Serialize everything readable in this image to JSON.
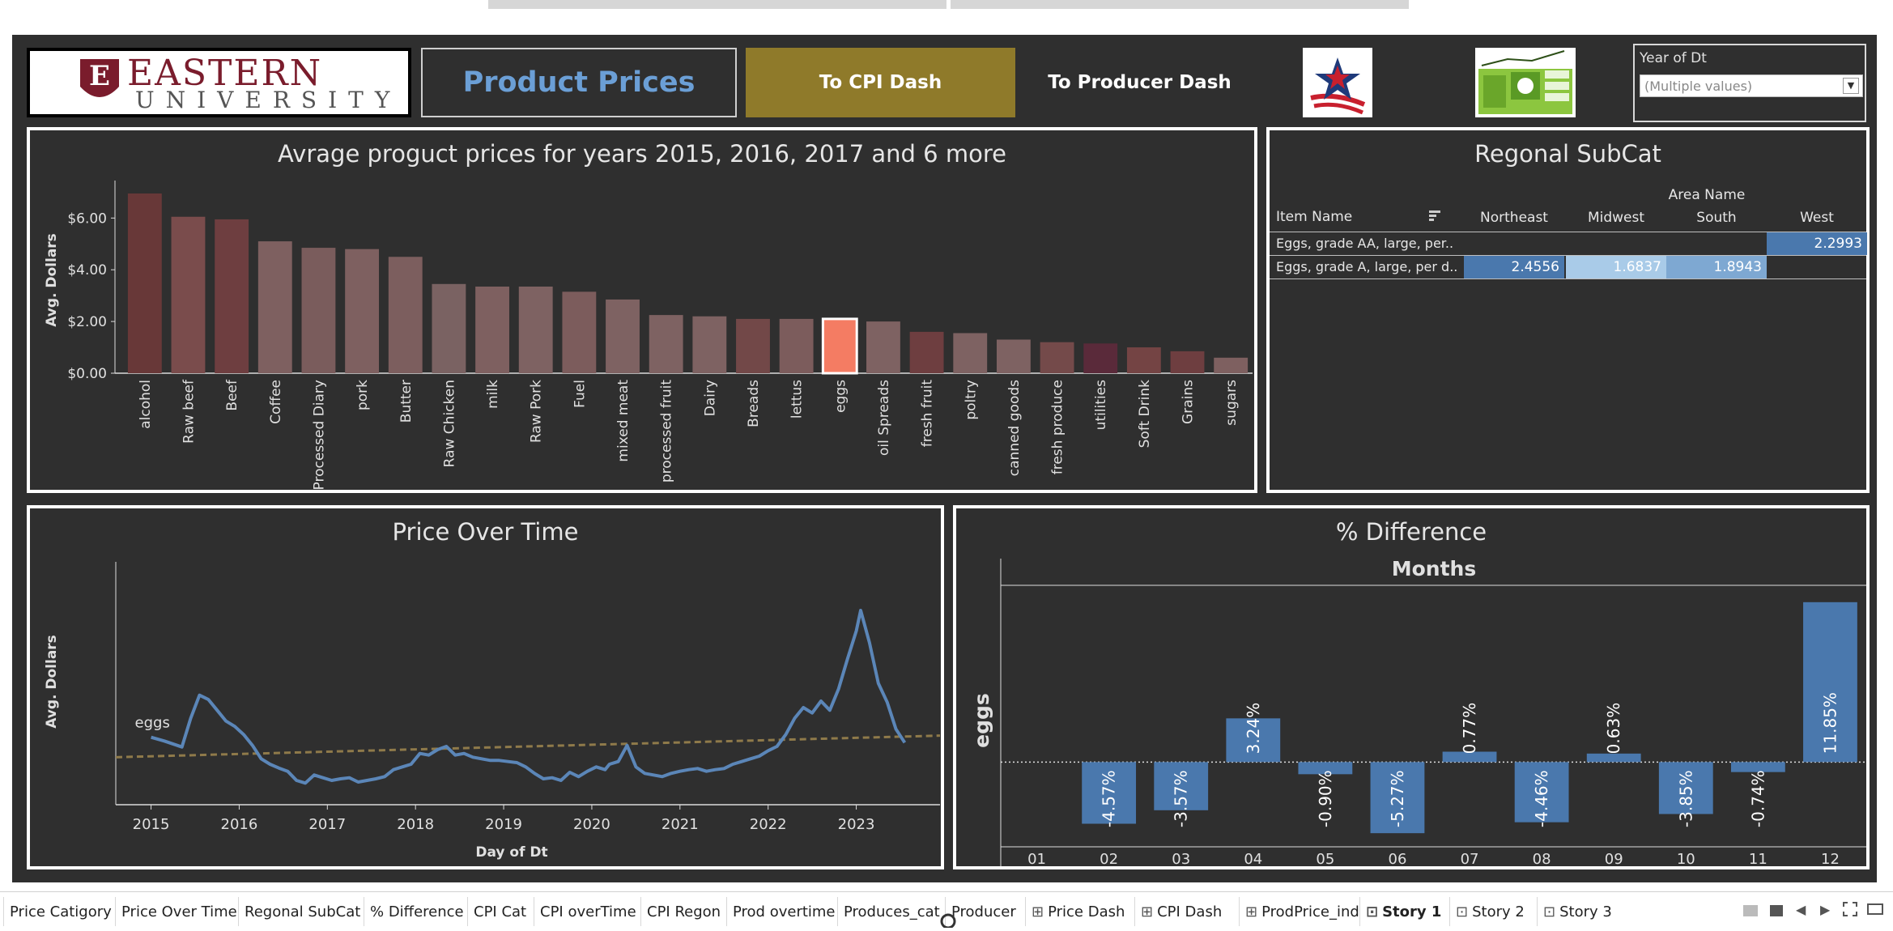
{
  "header": {
    "university_name": "EASTERN",
    "university_sub": "UNIVERSITY",
    "logo_letter": "E",
    "dashboard_title": "Product Prices",
    "cpi_button": "To CPI Dash",
    "producer_button": "To Producer Dash"
  },
  "filter": {
    "label": "Year of Dt",
    "value": "(Multiple values)"
  },
  "colors": {
    "background": "#2f2f2f",
    "accent_gold": "#8f7a2a",
    "title_blue": "#6b9fd6",
    "line_blue": "#5b86b8",
    "bar_blue": "#4a78ad",
    "highlight": "#f47c63",
    "trend_gold": "#8f7a4a"
  },
  "bar_panel": {
    "title": "Avrage proguct prices for years 2015, 2016, 2017 and 6 more"
  },
  "regional_panel": {
    "title": "Regonal SubCat",
    "group_header": "Area Name",
    "row_header": "Item Name",
    "columns": [
      "Northeast",
      "Midwest",
      "South",
      "West"
    ],
    "rows": [
      {
        "item": "Eggs, grade AA, large, per..",
        "values": [
          "",
          "",
          "",
          "2.2993"
        ]
      },
      {
        "item": "Eggs, grade A, large, per d..",
        "values": [
          "2.4556",
          "1.6837",
          "1.8943",
          ""
        ]
      }
    ]
  },
  "price_panel": {
    "title": "Price Over Time",
    "series_label": "eggs"
  },
  "diff_panel": {
    "title": "% Difference",
    "header": "Months",
    "row_label": "eggs"
  },
  "chart_data": [
    {
      "type": "bar",
      "title": "Avrage proguct prices for years 2015, 2016, 2017 and 6 more",
      "ylabel": "Avg. Dollars",
      "ylim": [
        0,
        7.2
      ],
      "yticks": [
        "$0.00",
        "$2.00",
        "$4.00",
        "$6.00"
      ],
      "ytick_values": [
        0,
        2,
        4,
        6
      ],
      "categories": [
        "alcohol",
        "Raw beef",
        "Beef",
        "Coffee",
        "Processed Diary",
        "pork",
        "Butter",
        "Raw Chicken",
        "milk",
        "Raw Pork",
        "Fuel",
        "mixed meat",
        "processed fruit",
        "Dairy",
        "Breads",
        "lettus",
        "eggs",
        "oil Spreads",
        "fresh fruit",
        "poltry",
        "canned goods",
        "fresh produce",
        "utilities",
        "Soft Drink",
        "Grains",
        "sugars"
      ],
      "values": [
        6.95,
        6.05,
        5.95,
        5.1,
        4.85,
        4.8,
        4.5,
        3.45,
        3.35,
        3.35,
        3.15,
        2.85,
        2.25,
        2.2,
        2.1,
        2.1,
        2.1,
        2.0,
        1.6,
        1.55,
        1.3,
        1.2,
        1.15,
        1.0,
        0.85,
        0.6
      ],
      "colors": [
        "#683838",
        "#7a4c4c",
        "#6e3e40",
        "#7e6060",
        "#7a5c5c",
        "#7e6060",
        "#7c5e5e",
        "#7a6262",
        "#7e6060",
        "#7e6262",
        "#7c5c5c",
        "#7e6262",
        "#7e6262",
        "#7e6262",
        "#724848",
        "#7c5c5c",
        "#f47c63",
        "#7e6262",
        "#6e3e40",
        "#7e6262",
        "#7e6262",
        "#744a4a",
        "#5a2a3a",
        "#744444",
        "#6e3e40",
        "#7e6060"
      ],
      "highlight": "eggs"
    },
    {
      "type": "line",
      "title": "Price Over Time",
      "xlabel": "Day of Dt",
      "ylabel": "Avg. Dollars",
      "xticks": [
        "2015",
        "2016",
        "2017",
        "2018",
        "2019",
        "2020",
        "2021",
        "2022",
        "2023"
      ],
      "xlim": [
        2014.6,
        2023.95
      ],
      "ylim": [
        0.8,
        5.3
      ],
      "series": [
        {
          "name": "eggs",
          "x": [
            2015.0,
            2015.15,
            2015.35,
            2015.45,
            2015.55,
            2015.65,
            2015.75,
            2015.85,
            2015.95,
            2016.05,
            2016.15,
            2016.25,
            2016.35,
            2016.45,
            2016.55,
            2016.65,
            2016.75,
            2016.85,
            2016.95,
            2017.05,
            2017.15,
            2017.25,
            2017.35,
            2017.45,
            2017.55,
            2017.65,
            2017.75,
            2017.85,
            2017.95,
            2018.05,
            2018.15,
            2018.25,
            2018.35,
            2018.45,
            2018.55,
            2018.65,
            2018.75,
            2018.85,
            2018.95,
            2019.05,
            2019.15,
            2019.25,
            2019.35,
            2019.45,
            2019.55,
            2019.65,
            2019.75,
            2019.85,
            2019.95,
            2020.05,
            2020.15,
            2020.2,
            2020.3,
            2020.4,
            2020.5,
            2020.6,
            2020.7,
            2020.8,
            2020.9,
            2021.0,
            2021.1,
            2021.2,
            2021.3,
            2021.4,
            2021.5,
            2021.6,
            2021.7,
            2021.8,
            2021.9,
            2022.0,
            2022.1,
            2022.2,
            2022.3,
            2022.4,
            2022.5,
            2022.6,
            2022.7,
            2022.8,
            2022.9,
            2023.0,
            2023.05,
            2023.15,
            2023.25,
            2023.35,
            2023.45,
            2023.55
          ],
          "y": [
            2.05,
            1.98,
            1.87,
            2.4,
            2.83,
            2.75,
            2.55,
            2.35,
            2.25,
            2.1,
            1.9,
            1.65,
            1.55,
            1.48,
            1.42,
            1.25,
            1.2,
            1.35,
            1.3,
            1.25,
            1.28,
            1.3,
            1.22,
            1.25,
            1.28,
            1.32,
            1.45,
            1.5,
            1.55,
            1.75,
            1.72,
            1.82,
            1.88,
            1.72,
            1.75,
            1.68,
            1.65,
            1.62,
            1.62,
            1.6,
            1.58,
            1.5,
            1.38,
            1.28,
            1.3,
            1.25,
            1.4,
            1.32,
            1.42,
            1.5,
            1.45,
            1.55,
            1.6,
            1.9,
            1.5,
            1.38,
            1.35,
            1.32,
            1.38,
            1.42,
            1.45,
            1.47,
            1.42,
            1.45,
            1.47,
            1.55,
            1.6,
            1.65,
            1.7,
            1.8,
            1.88,
            2.1,
            2.4,
            2.6,
            2.5,
            2.72,
            2.55,
            2.95,
            3.5,
            4.02,
            4.4,
            3.8,
            3.05,
            2.7,
            2.2,
            1.95
          ]
        }
      ],
      "trend": {
        "x": [
          2014.6,
          2023.95
        ],
        "y": [
          1.68,
          2.08
        ]
      }
    },
    {
      "type": "bar",
      "title": "% Difference",
      "xlabel": "Months",
      "categories": [
        "01",
        "02",
        "03",
        "04",
        "05",
        "06",
        "07",
        "08",
        "09",
        "10",
        "11",
        "12"
      ],
      "values": [
        null,
        -4.57,
        -3.57,
        3.24,
        -0.9,
        -5.27,
        0.77,
        -4.46,
        0.63,
        -3.85,
        -0.74,
        11.85
      ],
      "labels": [
        "",
        "-4.57%",
        "-3.57%",
        "3.24%",
        "-0.90%",
        "-5.27%",
        "0.77%",
        "-4.46%",
        "0.63%",
        "-3.85%",
        "-0.74%",
        "11.85%"
      ],
      "ylim": [
        -6.1,
        13.1
      ]
    }
  ],
  "tabs": [
    {
      "label": "Price Catigory",
      "icon": ""
    },
    {
      "label": "Price Over Time",
      "icon": ""
    },
    {
      "label": "Regonal SubCat",
      "icon": ""
    },
    {
      "label": "% Difference",
      "icon": ""
    },
    {
      "label": "CPI Cat",
      "icon": ""
    },
    {
      "label": "CPI overTime",
      "icon": ""
    },
    {
      "label": "CPI Regon",
      "icon": ""
    },
    {
      "label": "Prod overtime",
      "icon": ""
    },
    {
      "label": "Produces_cat",
      "icon": ""
    },
    {
      "label": "Producer",
      "icon": ""
    },
    {
      "label": "Price Dash",
      "icon": "dashboard-icon"
    },
    {
      "label": "CPI Dash",
      "icon": "dashboard-icon"
    },
    {
      "label": "ProdPrice_ind",
      "icon": "dashboard-icon"
    },
    {
      "label": "Story 1",
      "icon": "story-icon",
      "active": true
    },
    {
      "label": "Story 2",
      "icon": "story-icon"
    },
    {
      "label": "Story 3",
      "icon": "story-icon"
    }
  ]
}
